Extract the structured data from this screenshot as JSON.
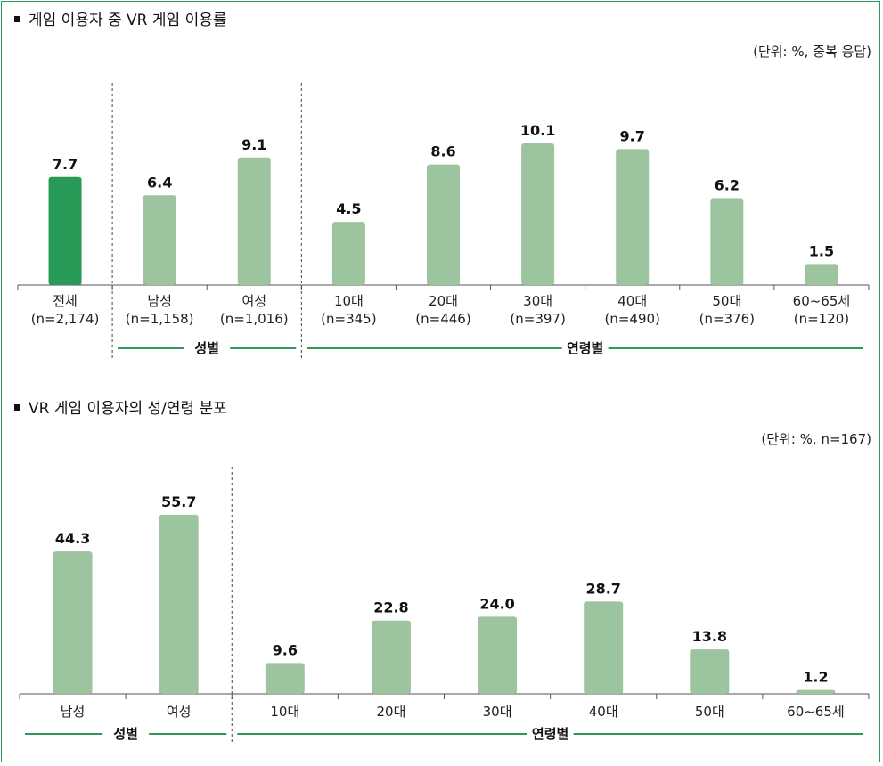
{
  "colors": {
    "frame": "#2e9a5a",
    "bar": "#9cc49e",
    "bar_highlight": "#269a56",
    "group_line": "#2e9a5a"
  },
  "chart_data": [
    {
      "type": "bar",
      "title": "게임 이용자 중 VR 게임 이용률",
      "unit_note": "(단위: %, 중복 응답)",
      "categories": [
        "전체",
        "남성",
        "여성",
        "10대",
        "20대",
        "30대",
        "40대",
        "50대",
        "60~65세"
      ],
      "sample_sizes": [
        "(n=2,174)",
        "(n=1,158)",
        "(n=1,016)",
        "(n=345)",
        "(n=446)",
        "(n=397)",
        "(n=490)",
        "(n=376)",
        "(n=120)"
      ],
      "values": [
        7.7,
        6.4,
        9.1,
        4.5,
        8.6,
        10.1,
        9.7,
        6.2,
        1.5
      ],
      "value_labels": [
        "7.7",
        "6.4",
        "9.1",
        "4.5",
        "8.6",
        "10.1",
        "9.7",
        "6.2",
        "1.5"
      ],
      "highlight_index": 0,
      "groups": [
        {
          "label": "성별",
          "from": 1,
          "to": 2
        },
        {
          "label": "연령별",
          "from": 3,
          "to": 8
        }
      ],
      "ylim": [
        0,
        10.8
      ]
    },
    {
      "type": "bar",
      "title": "VR 게임 이용자의 성/연령 분포",
      "unit_note": "(단위: %, n=167)",
      "categories": [
        "남성",
        "여성",
        "10대",
        "20대",
        "30대",
        "40대",
        "50대",
        "60~65세"
      ],
      "values": [
        44.3,
        55.7,
        9.6,
        22.8,
        24.0,
        28.7,
        13.8,
        1.2
      ],
      "value_labels": [
        "44.3",
        "55.7",
        "9.6",
        "22.8",
        "24.0",
        "28.7",
        "13.8",
        "1.2"
      ],
      "groups": [
        {
          "label": "성별",
          "from": 0,
          "to": 1
        },
        {
          "label": "연령별",
          "from": 2,
          "to": 7
        }
      ],
      "ylim": [
        0,
        59
      ]
    }
  ]
}
